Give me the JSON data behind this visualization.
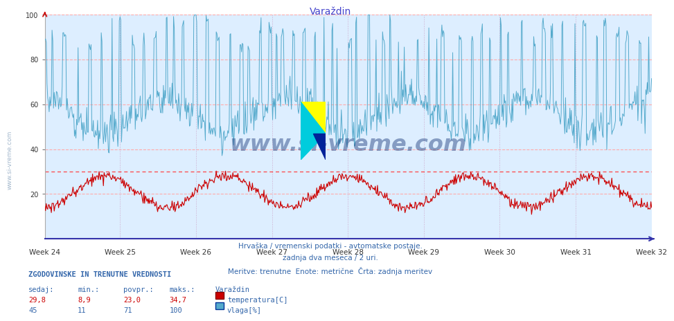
{
  "title": "Varaždin",
  "title_color": "#4444cc",
  "bg_color": "#ffffff",
  "plot_bg_color": "#ddeeff",
  "grid_h_color": "#ffaaaa",
  "grid_v_color": "#ccbbcc",
  "xlabel": "",
  "ylabel": "",
  "xlim_max": 839,
  "ylim": [
    0,
    100
  ],
  "yticks": [
    20,
    40,
    60,
    80,
    100
  ],
  "week_labels": [
    "Week 24",
    "Week 25",
    "Week 26",
    "Week 27",
    "Week 28",
    "Week 29",
    "Week 30",
    "Week 31",
    "Week 32"
  ],
  "week_tick_positions": [
    0,
    104,
    209,
    314,
    419,
    524,
    629,
    734,
    839
  ],
  "temp_color": "#cc0000",
  "humidity_color": "#55aacc",
  "watermark_text": "www.si-vreme.com",
  "watermark_color": "#1a3a7a",
  "watermark_alpha": 0.45,
  "sidebar_text": "www.si-vreme.com",
  "footer_line1": "Hrvaška / vremenski podatki - avtomatske postaje.",
  "footer_line2": "zadnja dva meseca / 2 uri.",
  "footer_line3": "Meritve: trenutne  Enote: metrične  Črta: zadnja meritev",
  "stats_header": "ZGODOVINSKE IN TRENUTNE VREDNOSTI",
  "stats_col1": "sedaj:",
  "stats_col2": "min.:",
  "stats_col3": "povpr.:",
  "stats_col4": "maks.:",
  "stats_loc": "Varaždin",
  "temp_vals": [
    "29,8",
    "8,9",
    "23,0",
    "34,7"
  ],
  "hum_vals": [
    "45",
    "11",
    "71",
    "100"
  ],
  "temp_label": "temperatura[C]",
  "hum_label": "vlaga[%]",
  "hline_solid_red": 30,
  "hline_dashed": [
    20,
    40,
    60,
    80,
    100
  ],
  "n_points": 840,
  "left_spine_color": "#3333aa",
  "bottom_spine_color": "#3333aa"
}
